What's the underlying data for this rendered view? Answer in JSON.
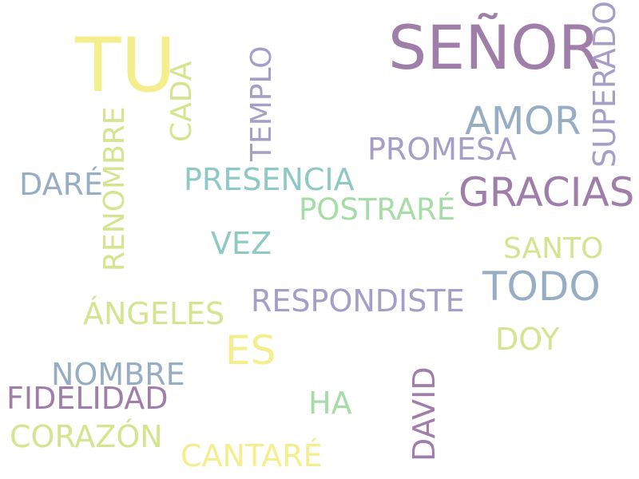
{
  "word_cloud": {
    "palette": {
      "yellow": "#f4ee8c",
      "lime": "#d3e58e",
      "mint": "#a6dca8",
      "teal": "#8ec9c3",
      "steel": "#97adc4",
      "lavender": "#a69ec6",
      "purple": "#9f7ea9"
    },
    "words": [
      {
        "text": "SEÑOR",
        "color": "#9f7ea9"
      },
      {
        "text": "TU",
        "color": "#f4ee8c"
      },
      {
        "text": "AMOR",
        "color": "#97adc4"
      },
      {
        "text": "GRACIAS",
        "color": "#9f7ea9"
      },
      {
        "text": "PROMESA",
        "color": "#a69ec6"
      },
      {
        "text": "SUPERADO",
        "color": "#a69ec6"
      },
      {
        "text": "TEMPLO",
        "color": "#a69ec6"
      },
      {
        "text": "CADA",
        "color": "#d3e58e"
      },
      {
        "text": "RENOMBRE",
        "color": "#d3e58e"
      },
      {
        "text": "DARÉ",
        "color": "#97adc4"
      },
      {
        "text": "PRESENCIA",
        "color": "#8ec9c3"
      },
      {
        "text": "POSTRARÉ",
        "color": "#a6dca8"
      },
      {
        "text": "VEZ",
        "color": "#8ec9c3"
      },
      {
        "text": "SANTO",
        "color": "#d3e58e"
      },
      {
        "text": "TODO",
        "color": "#97adc4"
      },
      {
        "text": "RESPONDISTE",
        "color": "#a69ec6"
      },
      {
        "text": "ÁNGELES",
        "color": "#d3e58e"
      },
      {
        "text": "ES",
        "color": "#f4ee8c"
      },
      {
        "text": "DOY",
        "color": "#d3e58e"
      },
      {
        "text": "NOMBRE",
        "color": "#97adc4"
      },
      {
        "text": "FIDELIDAD",
        "color": "#9f7ea9"
      },
      {
        "text": "HA",
        "color": "#a6dca8"
      },
      {
        "text": "DAVID",
        "color": "#9f7ea9"
      },
      {
        "text": "CORAZÓN",
        "color": "#d3e58e"
      },
      {
        "text": "CANTARÉ",
        "color": "#f4ee8c"
      }
    ]
  }
}
